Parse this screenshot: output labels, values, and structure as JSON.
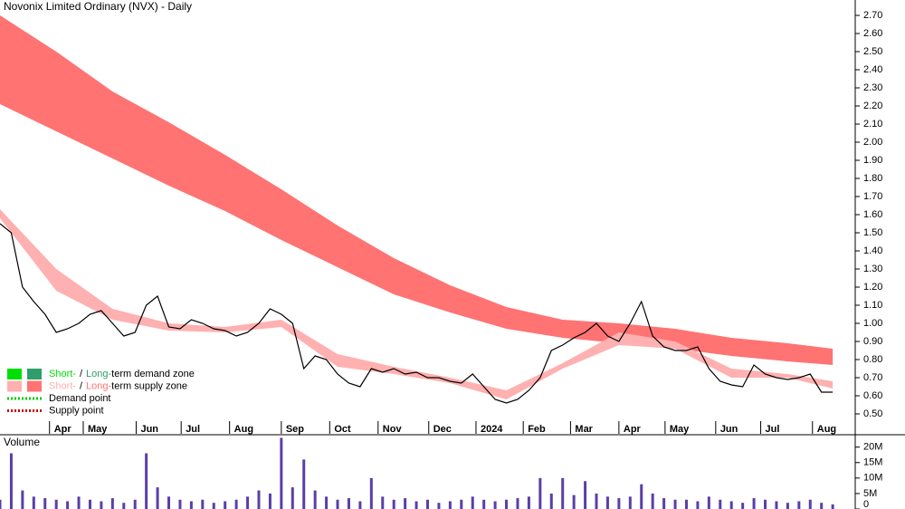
{
  "chart_data": {
    "type": "stock",
    "title": "Novonix Limited Ordinary (NVX) - Daily",
    "xlim": [
      0,
      76
    ],
    "xticks": [
      {
        "value": 4.4,
        "label": "Apr"
      },
      {
        "value": 7.4,
        "label": "May"
      },
      {
        "value": 12.1,
        "label": "Jun"
      },
      {
        "value": 16.1,
        "label": "Jul"
      },
      {
        "value": 20.4,
        "label": "Aug"
      },
      {
        "value": 25.0,
        "label": "Sep"
      },
      {
        "value": 29.3,
        "label": "Oct"
      },
      {
        "value": 33.6,
        "label": "Nov"
      },
      {
        "value": 38.1,
        "label": "Dec"
      },
      {
        "value": 42.3,
        "label": "2024"
      },
      {
        "value": 46.5,
        "label": "Feb"
      },
      {
        "value": 50.7,
        "label": "Mar"
      },
      {
        "value": 55.0,
        "label": "Apr"
      },
      {
        "value": 59.1,
        "label": "May"
      },
      {
        "value": 63.6,
        "label": "Jun"
      },
      {
        "value": 67.6,
        "label": "Jul"
      },
      {
        "value": 72.2,
        "label": "Aug"
      }
    ],
    "ylim": [
      0.46,
      2.78
    ],
    "yticks": [
      {
        "value": 0.5,
        "label": "0.50"
      },
      {
        "value": 0.6,
        "label": "0.60"
      },
      {
        "value": 0.7,
        "label": "0.70"
      },
      {
        "value": 0.8,
        "label": "0.80"
      },
      {
        "value": 0.9,
        "label": "0.90"
      },
      {
        "value": 1.0,
        "label": "1.00"
      },
      {
        "value": 1.1,
        "label": "1.10"
      },
      {
        "value": 1.2,
        "label": "1.20"
      },
      {
        "value": 1.3,
        "label": "1.30"
      },
      {
        "value": 1.4,
        "label": "1.40"
      },
      {
        "value": 1.5,
        "label": "1.50"
      },
      {
        "value": 1.6,
        "label": "1.60"
      },
      {
        "value": 1.7,
        "label": "1.70"
      },
      {
        "value": 1.8,
        "label": "1.80"
      },
      {
        "value": 1.9,
        "label": "1.90"
      },
      {
        "value": 2.0,
        "label": "2.00"
      },
      {
        "value": 2.1,
        "label": "2.10"
      },
      {
        "value": 2.2,
        "label": "2.20"
      },
      {
        "value": 2.3,
        "label": "2.30"
      },
      {
        "value": 2.4,
        "label": "2.40"
      },
      {
        "value": 2.5,
        "label": "2.50"
      },
      {
        "value": 2.6,
        "label": "2.60"
      },
      {
        "value": 2.7,
        "label": "2.70"
      }
    ],
    "price": {
      "color": "#000000",
      "x": [
        0,
        1,
        2,
        3,
        4,
        5,
        6,
        7,
        8,
        9,
        10,
        11,
        12,
        13,
        14,
        15,
        16,
        17,
        18,
        19,
        20,
        21,
        22,
        23,
        24,
        25,
        26,
        27,
        28,
        29,
        30,
        31,
        32,
        33,
        34,
        35,
        36,
        37,
        38,
        39,
        40,
        41,
        42,
        43,
        44,
        45,
        46,
        47,
        48,
        49,
        50,
        51,
        52,
        53,
        54,
        55,
        56,
        57,
        58,
        59,
        60,
        61,
        62,
        63,
        64,
        65,
        66,
        67,
        68,
        69,
        70,
        71,
        72,
        73,
        74
      ],
      "values": [
        1.55,
        1.5,
        1.2,
        1.12,
        1.05,
        0.95,
        0.97,
        1.0,
        1.05,
        1.07,
        1.0,
        0.93,
        0.95,
        1.1,
        1.15,
        0.98,
        0.97,
        1.02,
        1.0,
        0.97,
        0.96,
        0.93,
        0.95,
        1.0,
        1.08,
        1.05,
        1.0,
        0.75,
        0.82,
        0.8,
        0.72,
        0.67,
        0.65,
        0.75,
        0.73,
        0.75,
        0.72,
        0.73,
        0.7,
        0.7,
        0.68,
        0.67,
        0.72,
        0.65,
        0.58,
        0.56,
        0.58,
        0.63,
        0.7,
        0.85,
        0.88,
        0.92,
        0.95,
        1.0,
        0.93,
        0.9,
        1.0,
        1.12,
        0.93,
        0.87,
        0.85,
        0.85,
        0.87,
        0.75,
        0.68,
        0.66,
        0.65,
        0.77,
        0.72,
        0.7,
        0.69,
        0.7,
        0.72,
        0.62,
        0.62
      ]
    },
    "zones_x": [
      0,
      5,
      10,
      15,
      20,
      25,
      30,
      35,
      40,
      45,
      50,
      55,
      60,
      65,
      70,
      74
    ],
    "zones": [
      {
        "color": "#ff7373",
        "upper": [
          2.7,
          2.5,
          2.28,
          2.11,
          1.93,
          1.74,
          1.54,
          1.36,
          1.21,
          1.09,
          1.02,
          1.0,
          0.97,
          0.92,
          0.89,
          0.86
        ],
        "lower": [
          2.21,
          2.06,
          1.91,
          1.76,
          1.62,
          1.46,
          1.31,
          1.16,
          1.06,
          0.97,
          0.92,
          0.89,
          0.86,
          0.82,
          0.79,
          0.77
        ]
      },
      {
        "color": "#ffb0b0",
        "upper": [
          1.63,
          1.3,
          1.08,
          1.0,
          0.98,
          1.02,
          0.83,
          0.76,
          0.7,
          0.63,
          0.78,
          0.95,
          0.9,
          0.75,
          0.72,
          0.68
        ],
        "lower": [
          1.58,
          1.18,
          1.02,
          0.96,
          0.95,
          0.98,
          0.76,
          0.72,
          0.67,
          0.58,
          0.75,
          0.88,
          0.86,
          0.7,
          0.7,
          0.64
        ]
      }
    ],
    "volume": {
      "label": "Volume",
      "color": "#5a3fa8",
      "ylim": [
        0,
        24000000
      ],
      "yticks": [
        {
          "value": 0,
          "label": "0"
        },
        {
          "value": 5000000,
          "label": "5M"
        },
        {
          "value": 10000000,
          "label": "10M"
        },
        {
          "value": 15000000,
          "label": "15M"
        },
        {
          "value": 20000000,
          "label": "20M"
        }
      ],
      "values": [
        3000000,
        18000000,
        6000000,
        4000000,
        3500000,
        3000000,
        2500000,
        4000000,
        3000000,
        2500000,
        3500000,
        2000000,
        3000000,
        18000000,
        7000000,
        4000000,
        3000000,
        2500000,
        3000000,
        2000000,
        2500000,
        3000000,
        4000000,
        6000000,
        5000000,
        23000000,
        7000000,
        16000000,
        6000000,
        4000000,
        3000000,
        3500000,
        2500000,
        10000000,
        4000000,
        3000000,
        3500000,
        2500000,
        3000000,
        2000000,
        2500000,
        3000000,
        4000000,
        3000000,
        2500000,
        3000000,
        3500000,
        4000000,
        10000000,
        5000000,
        10000000,
        4500000,
        9000000,
        5000000,
        4000000,
        3500000,
        4000000,
        8000000,
        5000000,
        3500000,
        3000000,
        3000000,
        2500000,
        4000000,
        3000000,
        2500000,
        2000000,
        3500000,
        3000000,
        2500000,
        2000000,
        2500000,
        3000000,
        2000000,
        1500000
      ]
    },
    "legend": [
      {
        "short": "Short-",
        "sep": "/",
        "long": "Long-",
        "rest": "term demand zone",
        "colors": [
          "#00e000",
          "#2e9e6b"
        ]
      },
      {
        "short": "Short-",
        "sep": "/",
        "long": "Long-",
        "rest": "term supply zone",
        "colors": [
          "#ffb0b0",
          "#ff7373"
        ]
      },
      {
        "label": "Demand point",
        "color": "#00cc00"
      },
      {
        "label": "Supply point",
        "color": "#cc0000"
      }
    ]
  }
}
